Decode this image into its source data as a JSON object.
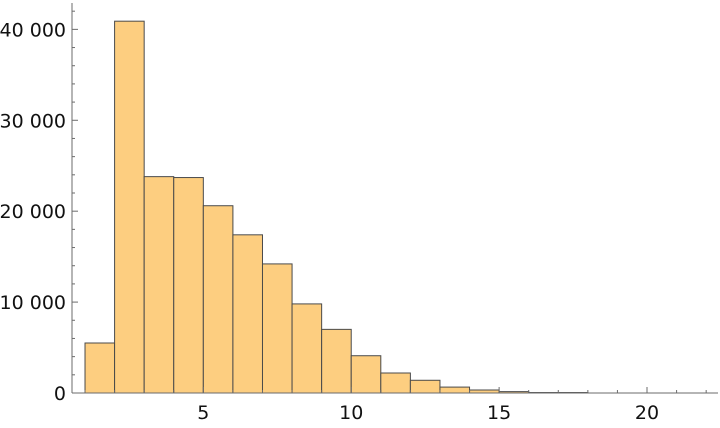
{
  "chart_data": {
    "type": "bar",
    "subtype": "histogram",
    "bin_edges": [
      1,
      2,
      3,
      4,
      5,
      6,
      7,
      8,
      9,
      10,
      11,
      12,
      13,
      14,
      15,
      16,
      17,
      18
    ],
    "values": [
      5500,
      40900,
      23800,
      23700,
      20600,
      17400,
      14200,
      9800,
      7000,
      4100,
      2200,
      1400,
      650,
      330,
      150,
      50,
      50
    ],
    "title": "",
    "xlabel": "",
    "ylabel": "",
    "xlim": [
      0.56,
      22.4
    ],
    "ylim": [
      0,
      42900
    ],
    "x_ticks": [
      5,
      10,
      15,
      20
    ],
    "x_tick_labels": [
      "5",
      "10",
      "15",
      "20"
    ],
    "y_ticks": [
      0,
      10000,
      20000,
      30000,
      40000
    ],
    "y_tick_labels": [
      "0",
      "10 000",
      "20 000",
      "30 000",
      "40 000"
    ],
    "grid": false,
    "legend": "none",
    "colors": {
      "bar_fill": "#FDCE80",
      "bar_stroke": "#4a4a4a",
      "axis": "#6b6b6b"
    }
  }
}
